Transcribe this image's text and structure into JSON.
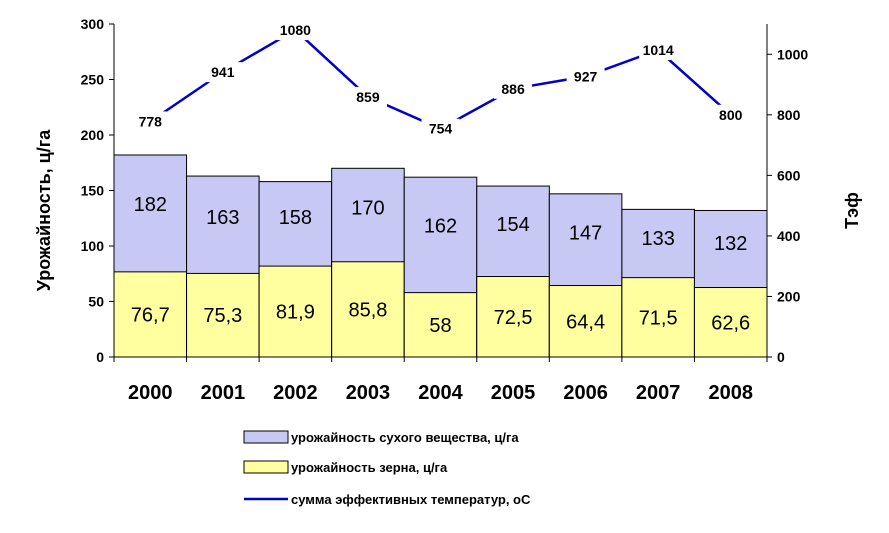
{
  "chart_data": {
    "type": "bar",
    "stacked": "overlay",
    "categories": [
      "2000",
      "2001",
      "2002",
      "2003",
      "2004",
      "2005",
      "2006",
      "2007",
      "2008"
    ],
    "series": [
      {
        "name": "урожайность сухого вещества, ц/га",
        "kind": "bar",
        "axis": "left",
        "color": "#c8c8f5",
        "values": [
          182,
          163,
          158,
          170,
          162,
          154,
          147,
          133,
          132
        ],
        "labels": [
          "182",
          "163",
          "158",
          "170",
          "162",
          "154",
          "147",
          "133",
          "132"
        ]
      },
      {
        "name": "урожайность зерна, ц/га",
        "kind": "bar",
        "axis": "left",
        "color": "#ffffa0",
        "values": [
          76.7,
          75.3,
          81.9,
          85.8,
          58,
          72.5,
          64.4,
          71.5,
          62.6
        ],
        "labels": [
          "76,7",
          "75,3",
          "81,9",
          "85,8",
          "58",
          "72,5",
          "64,4",
          "71,5",
          "62,6"
        ]
      },
      {
        "name": "сумма эффективных температур, оС",
        "kind": "line",
        "axis": "right",
        "color": "#0000cc",
        "values": [
          778,
          941,
          1080,
          859,
          754,
          886,
          927,
          1014,
          800
        ],
        "labels": [
          "778",
          "941",
          "1080",
          "859",
          "754",
          "886",
          "927",
          "1014",
          "800"
        ]
      }
    ],
    "ylabel": "Урожайность, ц/га",
    "y2label": "Тэф",
    "ylim": [
      0,
      300
    ],
    "y2lim": [
      0,
      1100
    ],
    "yticks": [
      0,
      50,
      100,
      150,
      200,
      250,
      300
    ],
    "y2ticks": [
      0,
      200,
      400,
      600,
      800,
      1000
    ],
    "grid": false,
    "legend_position": "bottom"
  }
}
